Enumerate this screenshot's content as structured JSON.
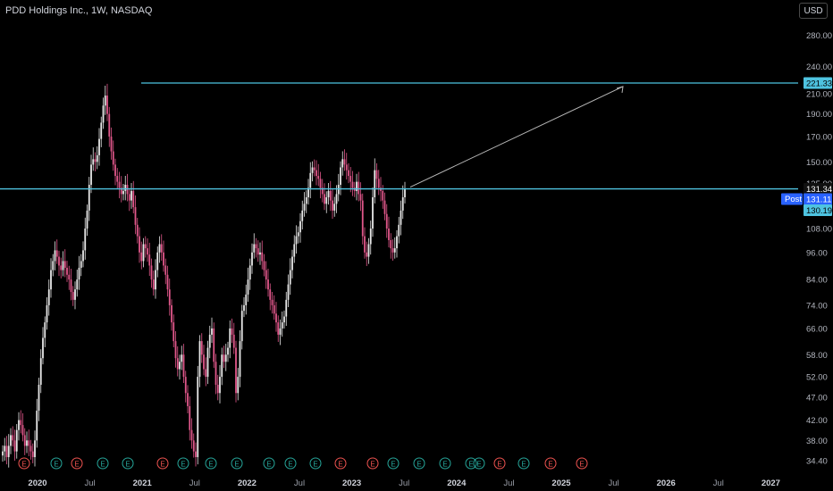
{
  "header": {
    "symbol_title": "PDD Holdings Inc., 1W, NASDAQ",
    "currency_button": "USD"
  },
  "colors": {
    "background": "#000000",
    "up_candle": "#e8e8e8",
    "down_candle": "#e0578a",
    "level_line": "#4ec3e0",
    "arrow": "#b8b8b8",
    "earnings_green": "#26a69a",
    "earnings_red": "#ef5350",
    "post_badge": "#2962ff"
  },
  "chart_data": {
    "type": "candlestick",
    "title": "PDD Holdings Inc., 1W, NASDAQ",
    "ylim": [
      33.5,
      292
    ],
    "y_scale": "log",
    "y_ticks": [
      "280.00",
      "240.00",
      "210.00",
      "190.00",
      "170.00",
      "150.00",
      "135.00",
      "108.00",
      "96.00",
      "84.00",
      "74.00",
      "66.00",
      "58.00",
      "52.00",
      "47.00",
      "42.00",
      "38.00",
      "34.40"
    ],
    "x_ticks": [
      "2020",
      "Jul",
      "2021",
      "Jul",
      "2022",
      "Jul",
      "2023",
      "Jul",
      "2024",
      "Jul",
      "2025",
      "Jul",
      "2026",
      "Jul",
      "2027"
    ],
    "weekly_closes": [
      36,
      37,
      35,
      37,
      39,
      38,
      36,
      40,
      42,
      41,
      39,
      37,
      38,
      37,
      36,
      35,
      38,
      44,
      50,
      57,
      63,
      68,
      74,
      80,
      88,
      92,
      97,
      94,
      90,
      88,
      92,
      89,
      86,
      84,
      79,
      76,
      80,
      84,
      89,
      92,
      97,
      108,
      118,
      134,
      148,
      152,
      150,
      155,
      168,
      182,
      198,
      208,
      190,
      170,
      158,
      148,
      140,
      136,
      132,
      128,
      130,
      134,
      128,
      124,
      130,
      120,
      110,
      104,
      96,
      92,
      100,
      98,
      95,
      90,
      84,
      80,
      88,
      96,
      100,
      96,
      90,
      86,
      80,
      74,
      68,
      62,
      57,
      54,
      56,
      58,
      52,
      48,
      45,
      40,
      38,
      36,
      35,
      52,
      62,
      58,
      54,
      52,
      60,
      64,
      66,
      56,
      50,
      48,
      52,
      58,
      56,
      58,
      60,
      66,
      64,
      60,
      48,
      52,
      62,
      72,
      74,
      78,
      84,
      90,
      96,
      100,
      98,
      95,
      96,
      92,
      88,
      84,
      80,
      76,
      74,
      71,
      68,
      64,
      66,
      68,
      70,
      76,
      82,
      88,
      94,
      100,
      104,
      106,
      112,
      118,
      122,
      126,
      132,
      142,
      146,
      144,
      140,
      138,
      132,
      128,
      122,
      126,
      130,
      124,
      118,
      122,
      128,
      134,
      146,
      152,
      148,
      144,
      140,
      136,
      132,
      130,
      136,
      128,
      124,
      104,
      96,
      94,
      100,
      108,
      126,
      144,
      138,
      132,
      130,
      124,
      116,
      108,
      102,
      98,
      96,
      98,
      104,
      110,
      118,
      126,
      131.34
    ],
    "horizontal_levels": [
      {
        "label": "221.33",
        "value": 221.33
      },
      {
        "label": "131.34",
        "value": 131.34
      }
    ],
    "price_labels": {
      "last": "131.34",
      "post_label": "Post",
      "post_value": "131.11",
      "level_130": "130.19"
    },
    "arrow": {
      "from_value": 131.34,
      "to_value": 221.33
    },
    "earnings_markers": [
      {
        "type": "E",
        "color": "red"
      },
      {
        "type": "E",
        "color": "green"
      },
      {
        "type": "E",
        "color": "red"
      },
      {
        "type": "E",
        "color": "green"
      },
      {
        "type": "E",
        "color": "green"
      },
      {
        "type": "E",
        "color": "red"
      },
      {
        "type": "E",
        "color": "green"
      },
      {
        "type": "E",
        "color": "green"
      },
      {
        "type": "E",
        "color": "green"
      },
      {
        "type": "E",
        "color": "green"
      },
      {
        "type": "E",
        "color": "green"
      },
      {
        "type": "E",
        "color": "green"
      },
      {
        "type": "E",
        "color": "red"
      },
      {
        "type": "E",
        "color": "red"
      },
      {
        "type": "E",
        "color": "green"
      },
      {
        "type": "E",
        "color": "green"
      },
      {
        "type": "E",
        "color": "green"
      },
      {
        "type": "E",
        "color": "green"
      },
      {
        "type": "E",
        "color": "green"
      },
      {
        "type": "E",
        "color": "red"
      },
      {
        "type": "E",
        "color": "green"
      },
      {
        "type": "E",
        "color": "red"
      },
      {
        "type": "E",
        "color": "red"
      }
    ]
  }
}
